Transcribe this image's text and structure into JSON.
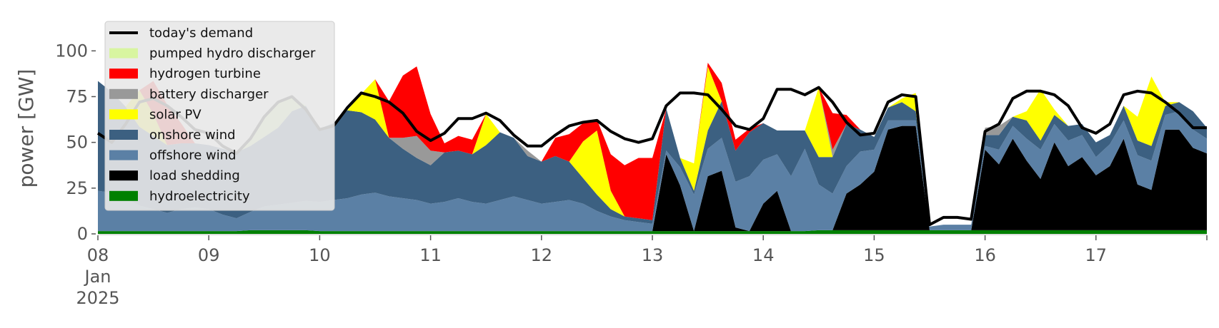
{
  "chart_data": {
    "type": "area",
    "ylabel": "power [GW]",
    "ylim": [
      0,
      120
    ],
    "xlim": [
      "2025-01-08T00:00",
      "2025-01-18T00:00"
    ],
    "yticks": [
      0,
      25,
      50,
      75,
      100
    ],
    "xticks": [
      {
        "value": "2025-01-08",
        "lines": [
          "08",
          "Jan",
          "2025"
        ]
      },
      {
        "value": "2025-01-09",
        "lines": [
          "09"
        ]
      },
      {
        "value": "2025-01-10",
        "lines": [
          "10"
        ]
      },
      {
        "value": "2025-01-11",
        "lines": [
          "11"
        ]
      },
      {
        "value": "2025-01-12",
        "lines": [
          "12"
        ]
      },
      {
        "value": "2025-01-13",
        "lines": [
          "13"
        ]
      },
      {
        "value": "2025-01-14",
        "lines": [
          "14"
        ]
      },
      {
        "value": "2025-01-15",
        "lines": [
          "15"
        ]
      },
      {
        "value": "2025-01-16",
        "lines": [
          "16"
        ]
      },
      {
        "value": "2025-01-17",
        "lines": [
          "17"
        ]
      }
    ],
    "legend_position": "upper-left",
    "x": [
      "2025-01-08T00:00",
      "2025-01-08T03:00",
      "2025-01-08T06:00",
      "2025-01-08T09:00",
      "2025-01-08T12:00",
      "2025-01-08T15:00",
      "2025-01-08T18:00",
      "2025-01-08T21:00",
      "2025-01-09T00:00",
      "2025-01-09T03:00",
      "2025-01-09T06:00",
      "2025-01-09T09:00",
      "2025-01-09T12:00",
      "2025-01-09T15:00",
      "2025-01-09T18:00",
      "2025-01-09T21:00",
      "2025-01-10T00:00",
      "2025-01-10T03:00",
      "2025-01-10T06:00",
      "2025-01-10T09:00",
      "2025-01-10T12:00",
      "2025-01-10T15:00",
      "2025-01-10T18:00",
      "2025-01-10T21:00",
      "2025-01-11T00:00",
      "2025-01-11T03:00",
      "2025-01-11T06:00",
      "2025-01-11T09:00",
      "2025-01-11T12:00",
      "2025-01-11T15:00",
      "2025-01-11T18:00",
      "2025-01-11T21:00",
      "2025-01-12T00:00",
      "2025-01-12T03:00",
      "2025-01-12T06:00",
      "2025-01-12T09:00",
      "2025-01-12T12:00",
      "2025-01-12T15:00",
      "2025-01-12T18:00",
      "2025-01-12T21:00",
      "2025-01-13T00:00",
      "2025-01-13T03:00",
      "2025-01-13T06:00",
      "2025-01-13T09:00",
      "2025-01-13T12:00",
      "2025-01-13T15:00",
      "2025-01-13T18:00",
      "2025-01-13T21:00",
      "2025-01-14T00:00",
      "2025-01-14T03:00",
      "2025-01-14T06:00",
      "2025-01-14T09:00",
      "2025-01-14T12:00",
      "2025-01-14T15:00",
      "2025-01-14T18:00",
      "2025-01-14T21:00",
      "2025-01-15T00:00",
      "2025-01-15T03:00",
      "2025-01-15T06:00",
      "2025-01-15T09:00",
      "2025-01-15T12:00",
      "2025-01-15T15:00",
      "2025-01-15T18:00",
      "2025-01-15T21:00",
      "2025-01-16T00:00",
      "2025-01-16T03:00",
      "2025-01-16T06:00",
      "2025-01-16T09:00",
      "2025-01-16T12:00",
      "2025-01-16T15:00",
      "2025-01-16T18:00",
      "2025-01-16T21:00",
      "2025-01-17T00:00",
      "2025-01-17T03:00",
      "2025-01-17T06:00",
      "2025-01-17T09:00",
      "2025-01-17T12:00",
      "2025-01-17T15:00",
      "2025-01-17T18:00",
      "2025-01-17T21:00",
      "2025-01-18T00:00"
    ],
    "demand": {
      "name": "today's demand",
      "color": "#000000",
      "values": [
        55,
        50,
        60,
        72,
        74,
        70,
        64,
        57,
        55,
        48,
        44,
        52,
        64,
        72,
        75,
        68,
        57,
        59,
        69,
        77,
        75,
        72,
        66,
        56,
        51,
        55,
        63,
        63,
        66,
        62,
        54,
        48,
        48,
        54,
        59,
        61,
        62,
        56,
        52,
        50,
        52,
        70,
        77,
        77,
        76,
        68,
        59,
        57,
        63,
        79,
        79,
        76,
        80,
        72,
        61,
        54,
        55,
        72,
        76,
        75,
        5,
        9,
        9,
        8,
        56,
        60,
        74,
        78,
        78,
        76,
        70,
        58,
        55,
        60,
        76,
        78,
        77,
        72,
        66,
        58,
        58
      ]
    },
    "series": [
      {
        "name": "hydroelectricity",
        "color": "#008000",
        "values": [
          1.5,
          1.5,
          1.5,
          1.5,
          1.5,
          1.5,
          1.5,
          1.5,
          1.5,
          1.5,
          1.5,
          2,
          2,
          2,
          2,
          2,
          1.5,
          1.5,
          1.5,
          1.5,
          1.5,
          1.5,
          1.5,
          1.5,
          1.5,
          1.5,
          1.5,
          1.5,
          1.5,
          1.5,
          1.5,
          1.5,
          1.5,
          1.5,
          1.5,
          1.5,
          1.5,
          1.5,
          1.5,
          1.5,
          1.5,
          1.5,
          1.5,
          1.5,
          1.5,
          1.5,
          1.5,
          1.5,
          1.5,
          1.5,
          1.5,
          1.5,
          2,
          2,
          2,
          2,
          2,
          2,
          2,
          2,
          2,
          2,
          2,
          2,
          2,
          2,
          2,
          2,
          2,
          2,
          2,
          2,
          2,
          2,
          2,
          2,
          2,
          2,
          2,
          2,
          2
        ]
      },
      {
        "name": "load shedding",
        "color": "#000000",
        "values": [
          0,
          0,
          0,
          0,
          0,
          0,
          0,
          0,
          0,
          0,
          0,
          0,
          0,
          0,
          0,
          0,
          0,
          0,
          0,
          0,
          0,
          0,
          0,
          0,
          0,
          0,
          0,
          0,
          0,
          0,
          0,
          0,
          0,
          0,
          0,
          0,
          0,
          0,
          0,
          0,
          0,
          42,
          25,
          0,
          30,
          33,
          2,
          0,
          15,
          22,
          0,
          0,
          0,
          0,
          20,
          25,
          32,
          55,
          57,
          57,
          0,
          0,
          0,
          0,
          44,
          36,
          50,
          38,
          28,
          48,
          35,
          40,
          30,
          35,
          50,
          25,
          22,
          55,
          55,
          45,
          42
        ]
      },
      {
        "name": "offshore wind",
        "color": "#5b80a5",
        "values": [
          22,
          21,
          18,
          14,
          12,
          10,
          12,
          13,
          12,
          9,
          7,
          10,
          13,
          14,
          15,
          16,
          16,
          17,
          18,
          20,
          21,
          19,
          18,
          17,
          15,
          16,
          18,
          16,
          15,
          17,
          19,
          17,
          15,
          16,
          17,
          15,
          11,
          8,
          6,
          5,
          4,
          2,
          10,
          20,
          15,
          18,
          25,
          30,
          24,
          20,
          30,
          45,
          25,
          20,
          15,
          18,
          12,
          5,
          3,
          3,
          2,
          3,
          3,
          3,
          2,
          8,
          7,
          12,
          16,
          10,
          14,
          12,
          10,
          12,
          10,
          16,
          16,
          8,
          10,
          10,
          8
        ]
      },
      {
        "name": "onshore wind",
        "color": "#3c6081",
        "values": [
          60,
          55,
          50,
          43,
          40,
          37,
          36,
          35,
          35,
          36,
          36,
          36,
          38,
          42,
          50,
          52,
          40,
          42,
          48,
          45,
          40,
          32,
          27,
          23,
          21,
          27,
          26,
          26,
          32,
          37,
          32,
          24,
          23,
          25,
          21,
          14,
          9,
          4,
          2,
          2,
          2,
          23,
          5,
          2,
          10,
          20,
          17,
          24,
          20,
          13,
          25,
          10,
          15,
          20,
          23,
          12,
          7,
          7,
          10,
          5,
          0,
          0,
          0,
          0,
          6,
          8,
          5,
          10,
          5,
          5,
          8,
          6,
          8,
          5,
          8,
          8,
          8,
          5,
          5,
          10,
          6
        ]
      },
      {
        "name": "solar PV",
        "color": "#ffff00",
        "values": [
          0,
          0,
          0,
          20,
          12,
          0,
          0,
          0,
          0,
          0,
          0,
          0,
          0,
          0,
          0,
          0,
          0,
          0,
          0,
          10,
          22,
          0,
          0,
          0,
          0,
          0,
          0,
          0,
          17,
          0,
          0,
          0,
          0,
          0,
          0,
          20,
          35,
          10,
          0,
          0,
          0,
          0,
          0,
          15,
          35,
          0,
          0,
          0,
          0,
          0,
          0,
          0,
          38,
          0,
          0,
          0,
          0,
          0,
          2,
          10,
          0,
          0,
          0,
          0,
          0,
          0,
          0,
          5,
          28,
          3,
          0,
          0,
          0,
          0,
          0,
          13,
          38,
          2,
          0,
          0,
          0
        ]
      },
      {
        "name": "battery discharger",
        "color": "#999999",
        "values": [
          0,
          0,
          0,
          0,
          0,
          0,
          0,
          0,
          0,
          0,
          0,
          0,
          0,
          0,
          0,
          0,
          0,
          0,
          0,
          0,
          0,
          0,
          6,
          12,
          8,
          0,
          0,
          0,
          0,
          0,
          0,
          3,
          0,
          0,
          0,
          0,
          0,
          0,
          0,
          0,
          0,
          0,
          0,
          0,
          0,
          0,
          0,
          0,
          0,
          0,
          0,
          0,
          0,
          4,
          0,
          0,
          0,
          0,
          0,
          0,
          0,
          0,
          0,
          0,
          4,
          5,
          0,
          0,
          0,
          0,
          0,
          0,
          0,
          0,
          0,
          0,
          0,
          0,
          0,
          0,
          0
        ]
      },
      {
        "name": "hydrogen turbine",
        "color": "#ff0000",
        "values": [
          0,
          0,
          0,
          0,
          18,
          22,
          11,
          0,
          0,
          0,
          0,
          0,
          0,
          0,
          0,
          0,
          0,
          0,
          0,
          0,
          0,
          20,
          34,
          38,
          20,
          5,
          8,
          8,
          0,
          0,
          0,
          0,
          0,
          10,
          15,
          10,
          6,
          20,
          28,
          33,
          34,
          0,
          0,
          0,
          2,
          10,
          6,
          2,
          0,
          0,
          0,
          0,
          0,
          20,
          5,
          0,
          0,
          0,
          0,
          0,
          0,
          0,
          0,
          0,
          0,
          0,
          0,
          0,
          0,
          0,
          0,
          0,
          0,
          0,
          0,
          0,
          0,
          0,
          0,
          0,
          0
        ]
      },
      {
        "name": "pumped hydro discharger",
        "color": "#d8f5a0",
        "values": [
          0,
          0,
          0,
          0,
          0,
          0,
          0,
          0,
          0,
          0,
          0,
          3,
          10,
          14,
          8,
          0,
          0,
          0,
          0,
          0,
          0,
          0,
          0,
          0,
          0,
          0,
          0,
          0,
          0,
          0,
          0,
          0,
          0,
          0,
          0,
          0,
          0,
          0,
          0,
          0,
          0,
          0,
          0,
          0,
          0,
          0,
          0,
          0,
          0,
          0,
          0,
          0,
          0,
          0,
          0,
          0,
          0,
          0,
          0,
          0,
          0,
          0,
          0,
          0,
          0,
          0,
          0,
          0,
          0,
          0,
          0,
          0,
          0,
          0,
          0,
          0,
          0,
          0,
          0,
          0,
          0
        ]
      }
    ],
    "legend": [
      {
        "label": "today's demand",
        "color": "#000000",
        "kind": "line"
      },
      {
        "label": "pumped hydro discharger",
        "color": "#d8f5a0",
        "kind": "patch"
      },
      {
        "label": "hydrogen turbine",
        "color": "#ff0000",
        "kind": "patch"
      },
      {
        "label": "battery discharger",
        "color": "#999999",
        "kind": "patch"
      },
      {
        "label": "solar PV",
        "color": "#ffff00",
        "kind": "patch"
      },
      {
        "label": "onshore wind",
        "color": "#3c6081",
        "kind": "patch"
      },
      {
        "label": "offshore wind",
        "color": "#5b80a5",
        "kind": "patch"
      },
      {
        "label": "load shedding",
        "color": "#000000",
        "kind": "patch"
      },
      {
        "label": "hydroelectricity",
        "color": "#008000",
        "kind": "patch"
      }
    ]
  }
}
